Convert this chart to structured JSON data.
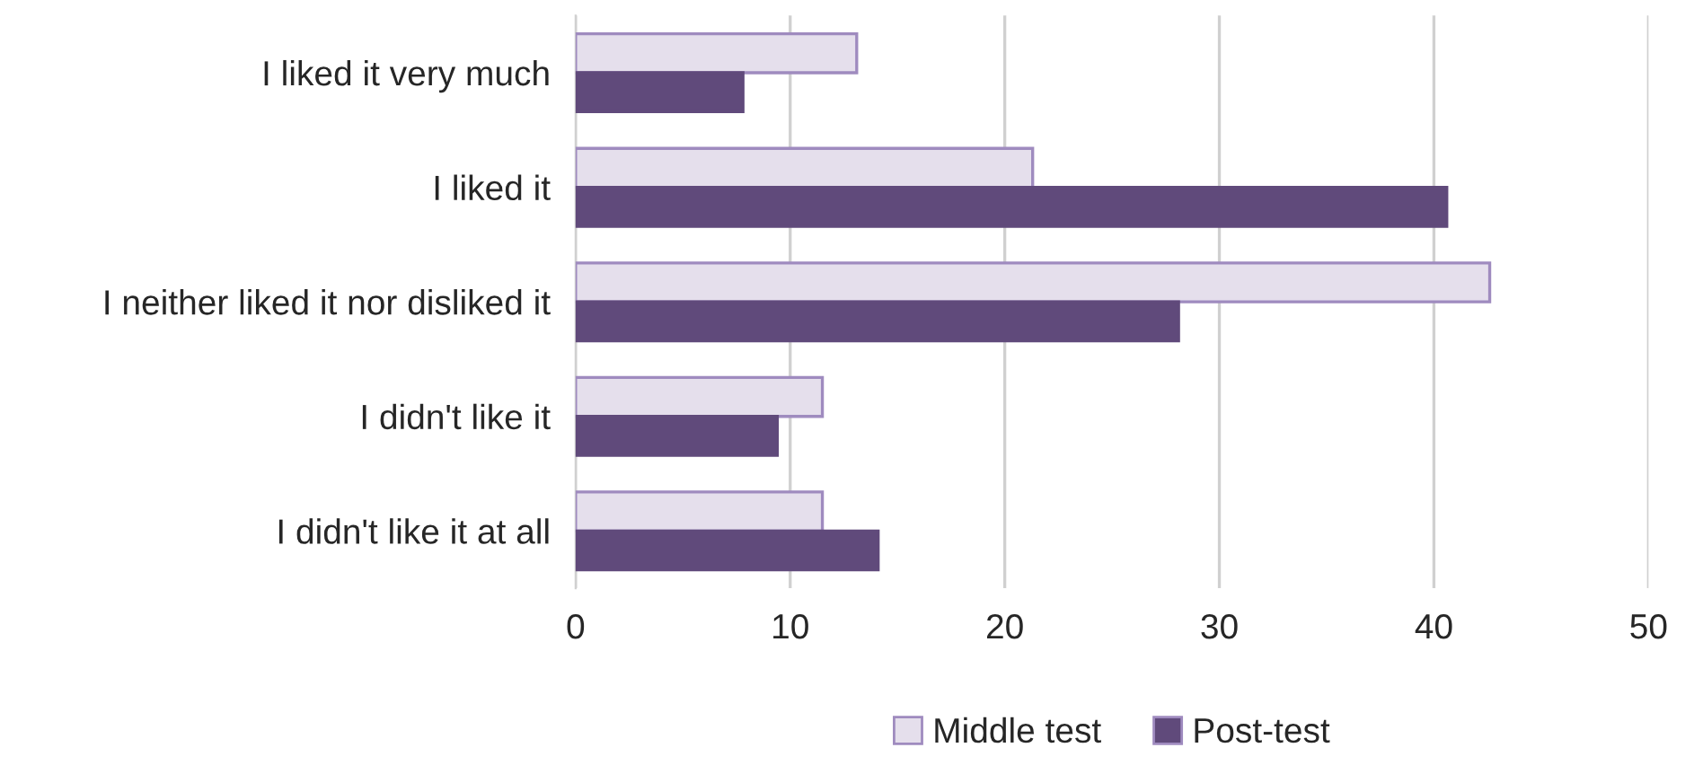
{
  "chart_data": {
    "type": "bar",
    "orientation": "horizontal",
    "categories": [
      "I liked it very much",
      "I liked it",
      "I neither liked it nor disliked it",
      "I didn't like it",
      "I didn't like it at all"
    ],
    "series": [
      {
        "name": "Middle test",
        "color": "#e5dfec",
        "values": [
          13.1,
          21.3,
          42.6,
          11.5,
          11.5
        ]
      },
      {
        "name": "Post-test",
        "color": "#604a7b",
        "values": [
          7.8,
          40.6,
          28.1,
          9.4,
          14.1
        ]
      }
    ],
    "xlim": [
      0,
      50
    ],
    "xticks": [
      0,
      10,
      20,
      30,
      40,
      50
    ],
    "grid": "x",
    "legend": "bottom"
  }
}
